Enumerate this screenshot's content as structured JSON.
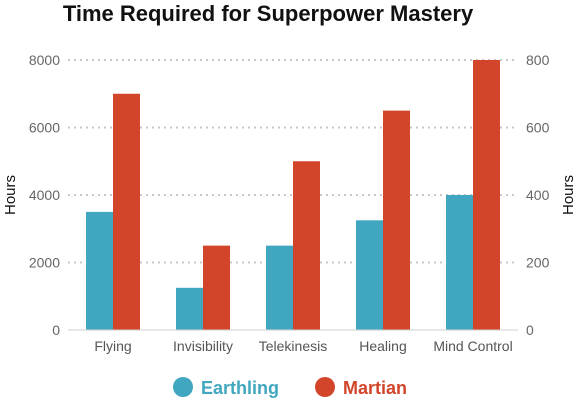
{
  "chart_data": {
    "type": "bar",
    "title": "Time Required for Superpower Mastery",
    "categories": [
      "Flying",
      "Invisibility",
      "Telekinesis",
      "Healing",
      "Mind Control"
    ],
    "series": [
      {
        "name": "Earthling",
        "color": "#41a6bf",
        "axis": "left",
        "values": [
          3500,
          1250,
          2500,
          3250,
          4000
        ]
      },
      {
        "name": "Martian",
        "color": "#d2452a",
        "axis": "right",
        "values": [
          700,
          250,
          500,
          650,
          800
        ]
      }
    ],
    "ylabel": "Hours",
    "y2label": "Hours",
    "ylim": [
      0,
      8000
    ],
    "y2lim": [
      0,
      800
    ],
    "yticks": [
      "0",
      "2000",
      "4000",
      "6000",
      "8000"
    ],
    "y2ticks": [
      "0",
      "200",
      "400",
      "600",
      "800"
    ],
    "grid": true,
    "legend_position": "bottom"
  }
}
